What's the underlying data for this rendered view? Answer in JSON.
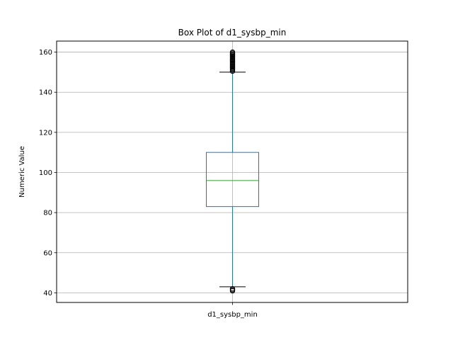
{
  "chart_data": {
    "type": "box",
    "title": "Box Plot of d1_sysbp_min",
    "xlabel": "",
    "ylabel": "Numeric Value",
    "categories": [
      "d1_sysbp_min"
    ],
    "ylim": [
      35.2,
      165.5
    ],
    "yticks": [
      40,
      60,
      80,
      100,
      120,
      140,
      160
    ],
    "yticks_labels": [
      "40",
      "60",
      "80",
      "100",
      "120",
      "140",
      "160"
    ],
    "grid": true,
    "box": {
      "whisker_low": 43,
      "q1": 83,
      "median": 96,
      "q3": 110,
      "whisker_high": 150
    },
    "outliers_high": [
      150.5,
      151,
      151.5,
      152,
      152.5,
      153,
      153.5,
      154,
      154.5,
      155,
      155.5,
      156,
      156.5,
      157,
      157.5,
      158,
      158.5,
      159,
      159.5,
      160
    ],
    "outliers_low": [
      41,
      41.5,
      42
    ],
    "colors": {
      "box": "#1f77b4",
      "median": "#2ca02c",
      "grid": "#b0b0b0",
      "axes": "#000000",
      "flier": "#000000"
    }
  }
}
